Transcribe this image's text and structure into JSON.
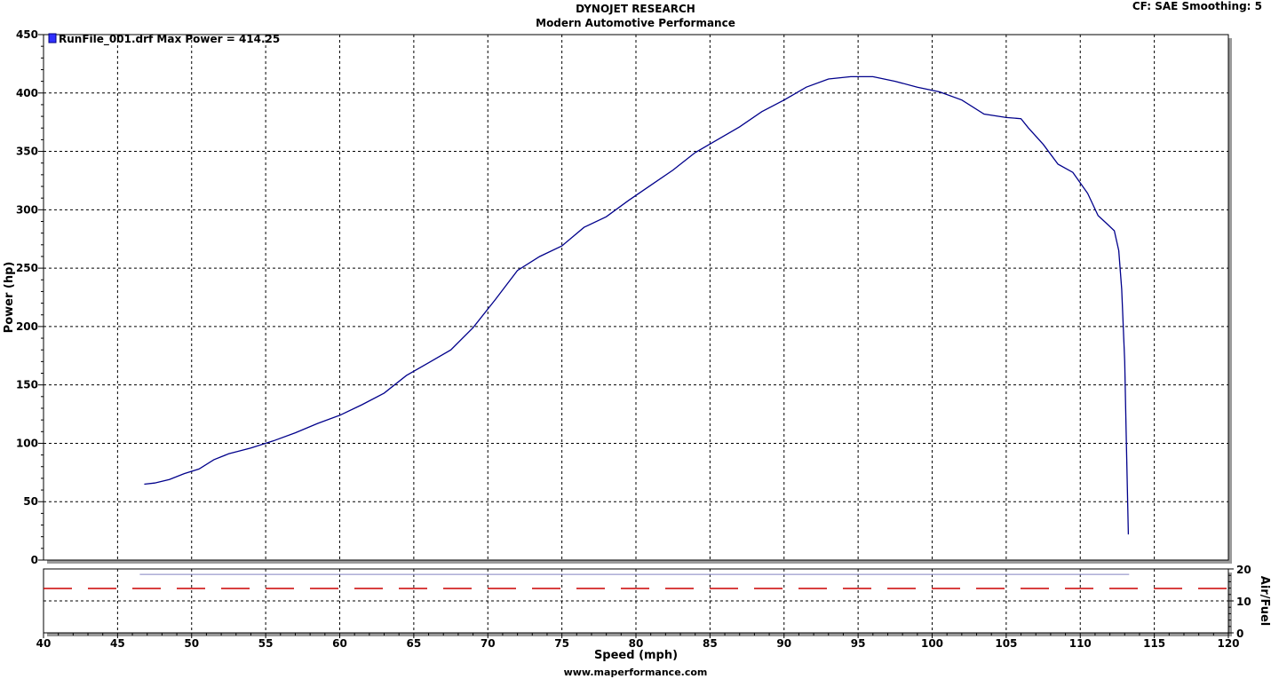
{
  "header": {
    "title": "DYNOJET RESEARCH",
    "subtitle": "Modern Automotive Performance",
    "correction": "CF: SAE  Smoothing: 5"
  },
  "footer": {
    "website": "www.maperformance.com"
  },
  "colors": {
    "power": "#00008b",
    "afr_target": "#cc0000",
    "afr": "#8080c0",
    "grid": "#000000"
  },
  "chart_data": [
    {
      "type": "line",
      "ylabel": "Power (hp)",
      "xlabel": "Speed (mph)",
      "xlim": [
        40,
        120
      ],
      "ylim": [
        0,
        450
      ],
      "xticks": [
        40,
        45,
        50,
        55,
        60,
        65,
        70,
        75,
        80,
        85,
        90,
        95,
        100,
        105,
        110,
        115,
        120
      ],
      "yticks": [
        0,
        50,
        100,
        150,
        200,
        250,
        300,
        350,
        400,
        450
      ],
      "grid": true,
      "legend": {
        "position": "top-left",
        "entries": [
          "RunFile_001.drf Max Power = 414.25"
        ]
      },
      "series": [
        {
          "name": "RunFile_001.drf",
          "color": "#00008b",
          "x": [
            46.8,
            47.5,
            48.5,
            49.5,
            50.5,
            51.5,
            52.5,
            54,
            55.5,
            57,
            58.5,
            60,
            61.5,
            63,
            64.5,
            66,
            67.5,
            69,
            70.5,
            72,
            73.5,
            75,
            76.5,
            78,
            79.5,
            81,
            82.5,
            84,
            85.5,
            87,
            88.5,
            90,
            91.5,
            93,
            94.5,
            96,
            97.5,
            99,
            100.5,
            102,
            103.5,
            105,
            106,
            106.5,
            107.5,
            108.5,
            109.5,
            110.5,
            111.2,
            111.8,
            112.3,
            112.6,
            112.8,
            113,
            113.1,
            113.2,
            113.25
          ],
          "y": [
            65,
            66,
            69,
            74,
            78,
            86,
            91,
            96,
            102,
            109,
            117,
            124,
            133,
            143,
            158,
            169,
            180,
            199,
            223,
            248,
            260,
            269,
            285,
            294,
            308,
            321,
            334,
            349,
            360,
            371,
            384,
            394,
            405,
            412,
            414,
            414,
            410,
            405,
            401,
            394,
            382,
            379,
            378,
            370,
            356,
            339,
            332,
            314,
            295,
            288,
            282,
            265,
            232,
            170,
            110,
            50,
            22
          ]
        }
      ]
    },
    {
      "type": "line",
      "ylabel": "Air/Fuel",
      "xlabel": "Speed (mph)",
      "xlim": [
        40,
        120
      ],
      "ylim": [
        0,
        20
      ],
      "xticks": [
        40,
        45,
        50,
        55,
        60,
        65,
        70,
        75,
        80,
        85,
        90,
        95,
        100,
        105,
        110,
        115,
        120
      ],
      "yticks": [
        0,
        10,
        20
      ],
      "grid": true,
      "series": [
        {
          "color": "#cc0000",
          "x": [
            40,
            120
          ],
          "y": [
            13.9,
            13.9
          ]
        },
        {
          "color": "#8080c0",
          "x": [
            46.5,
            113.3
          ],
          "y": [
            18.3,
            18.3
          ]
        }
      ]
    }
  ]
}
